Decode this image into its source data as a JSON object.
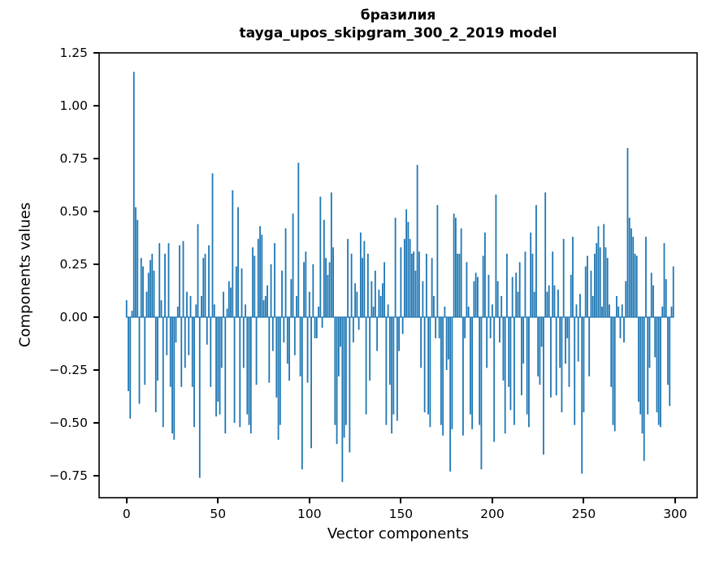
{
  "figure": {
    "title_line1": "бразилия",
    "title_line2": "tayga_upos_skipgram_300_2_2019 model"
  },
  "chart_data": {
    "type": "bar",
    "title": "бразилия",
    "subtitle": "tayga_upos_skipgram_300_2_2019 model",
    "xlabel": "Vector components",
    "ylabel": "Components values",
    "bar_color": "#1f77b4",
    "axis_color": "#000000",
    "grid": false,
    "legend_position": "none",
    "xlim": [
      -15,
      312
    ],
    "ylim": [
      -0.854,
      1.25
    ],
    "x_ticks": [
      0,
      50,
      100,
      150,
      200,
      250,
      300
    ],
    "y_ticks": [
      1.25,
      1.0,
      0.75,
      0.5,
      0.25,
      0.0,
      -0.25,
      -0.5,
      -0.75
    ],
    "n_components": 300,
    "values": [
      0.08,
      -0.35,
      -0.48,
      0.03,
      1.16,
      0.52,
      0.46,
      -0.41,
      0.28,
      0.24,
      -0.32,
      0.12,
      0.21,
      0.27,
      0.3,
      0.22,
      -0.45,
      -0.3,
      0.35,
      0.08,
      -0.52,
      0.3,
      -0.18,
      0.35,
      -0.33,
      -0.55,
      -0.58,
      -0.12,
      0.05,
      0.34,
      -0.33,
      0.36,
      -0.24,
      0.12,
      -0.18,
      0.1,
      -0.33,
      -0.52,
      0.06,
      0.44,
      -0.76,
      0.1,
      0.28,
      0.3,
      -0.13,
      0.34,
      -0.33,
      0.68,
      0.06,
      -0.47,
      -0.4,
      -0.46,
      -0.24,
      0.12,
      -0.55,
      0.04,
      0.17,
      0.14,
      0.6,
      -0.5,
      0.24,
      0.52,
      -0.52,
      0.23,
      -0.24,
      0.06,
      -0.46,
      -0.51,
      -0.55,
      0.33,
      0.29,
      -0.32,
      0.37,
      0.43,
      0.39,
      0.08,
      0.1,
      0.15,
      -0.31,
      0.25,
      -0.16,
      0.35,
      -0.38,
      -0.58,
      -0.51,
      0.22,
      -0.12,
      0.42,
      -0.22,
      -0.3,
      0.18,
      0.49,
      -0.18,
      0.1,
      0.73,
      -0.28,
      -0.72,
      0.26,
      0.31,
      -0.31,
      0.12,
      -0.62,
      0.25,
      -0.1,
      -0.1,
      0.05,
      0.57,
      -0.05,
      0.46,
      0.28,
      0.2,
      0.26,
      0.59,
      0.33,
      -0.51,
      -0.6,
      -0.28,
      -0.14,
      -0.78,
      -0.57,
      -0.51,
      0.37,
      -0.64,
      0.3,
      -0.12,
      0.16,
      0.12,
      -0.06,
      0.4,
      0.28,
      0.36,
      -0.46,
      0.3,
      -0.3,
      0.17,
      0.05,
      0.22,
      -0.16,
      0.13,
      0.1,
      0.16,
      0.26,
      -0.51,
      0.06,
      -0.32,
      -0.55,
      -0.46,
      0.47,
      -0.49,
      -0.16,
      0.33,
      -0.08,
      0.37,
      0.51,
      0.45,
      0.37,
      0.3,
      0.31,
      0.22,
      0.72,
      0.31,
      -0.24,
      0.17,
      -0.45,
      0.3,
      -0.46,
      -0.52,
      0.28,
      0.1,
      -0.1,
      0.53,
      -0.1,
      -0.51,
      -0.56,
      0.05,
      -0.25,
      -0.2,
      -0.73,
      -0.53,
      0.49,
      0.47,
      0.3,
      0.3,
      0.42,
      -0.56,
      -0.1,
      0.26,
      0.05,
      -0.46,
      -0.53,
      0.17,
      0.21,
      0.19,
      -0.51,
      -0.72,
      0.29,
      0.4,
      -0.24,
      0.2,
      -0.1,
      0.06,
      -0.59,
      0.58,
      0.17,
      -0.12,
      0.1,
      -0.3,
      -0.55,
      0.3,
      -0.33,
      -0.44,
      0.19,
      -0.51,
      0.21,
      0.12,
      0.26,
      -0.37,
      -0.22,
      0.31,
      -0.46,
      -0.52,
      0.4,
      0.3,
      0.12,
      0.53,
      -0.28,
      -0.32,
      -0.14,
      -0.65,
      0.59,
      0.12,
      0.15,
      -0.38,
      0.31,
      0.15,
      -0.37,
      0.13,
      -0.24,
      -0.45,
      0.37,
      -0.22,
      -0.1,
      -0.33,
      0.2,
      0.38,
      -0.51,
      0.06,
      -0.21,
      0.11,
      -0.74,
      -0.45,
      0.24,
      0.29,
      -0.28,
      0.22,
      0.1,
      0.3,
      0.35,
      0.43,
      0.33,
      0.05,
      0.44,
      0.33,
      0.28,
      0.06,
      -0.33,
      -0.51,
      -0.54,
      0.1,
      0.05,
      -0.1,
      0.06,
      -0.12,
      0.17,
      0.8,
      0.47,
      0.42,
      0.38,
      0.3,
      0.29,
      -0.4,
      -0.46,
      -0.55,
      -0.68,
      0.38,
      -0.46,
      -0.24,
      0.21,
      0.15,
      -0.19,
      -0.45,
      -0.51,
      -0.52,
      0.05,
      0.35,
      0.18,
      -0.32,
      -0.42,
      0.05,
      0.24
    ]
  }
}
